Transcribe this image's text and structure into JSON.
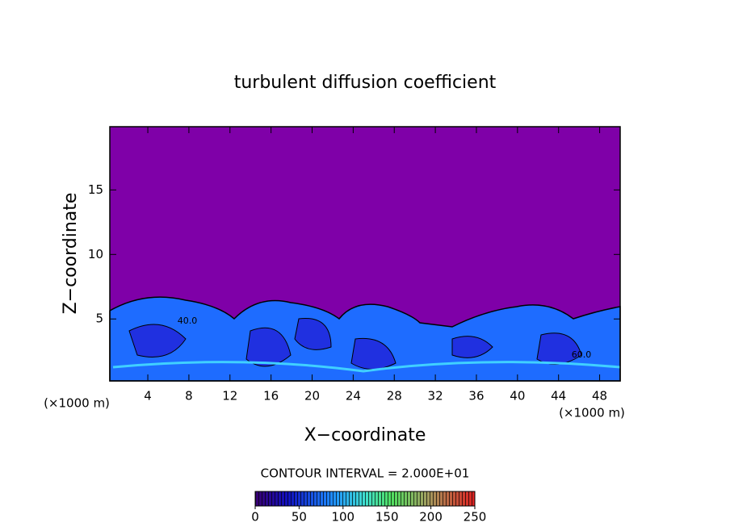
{
  "chart_data": {
    "type": "contour",
    "title": "turbulent diffusion coefficient",
    "x_label": "X−coordinate",
    "y_label": "Z−coordinate",
    "x_unit": "(×1000 m)",
    "y_unit": "(×1000 m)",
    "contour_interval": "CONTOUR INTERVAL = 2.000E+01",
    "annotations": [
      "40.0",
      "60.0"
    ],
    "xlim": [
      0.3,
      50
    ],
    "xticks": [
      4,
      8,
      12,
      16,
      20,
      24,
      28,
      32,
      36,
      40,
      44,
      48
    ],
    "ylim": [
      0.2,
      19.9
    ],
    "yticks": [
      5,
      10,
      15
    ],
    "clim": [
      0,
      250
    ],
    "cticks": [
      0,
      50,
      100,
      150,
      200,
      250
    ]
  }
}
